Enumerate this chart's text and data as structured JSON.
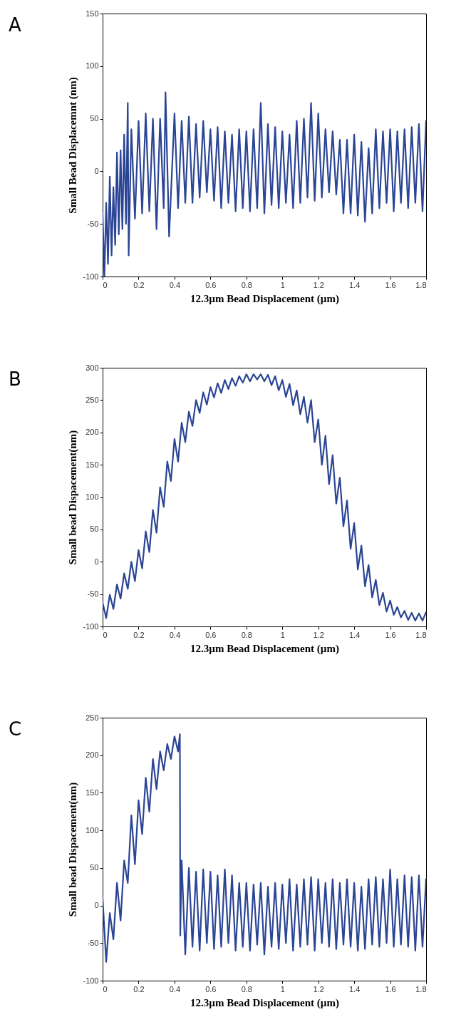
{
  "chart_data": [
    {
      "type": "line",
      "title": "A",
      "xlabel": "12.3µm Bead Displacement (µm)",
      "ylabel": "Small Bead Displacemnt (nm)",
      "xlim": [
        0,
        1.8
      ],
      "xticks": [
        0,
        0.2,
        0.4,
        0.6,
        0.8,
        1,
        1.2,
        1.4,
        1.6,
        1.8
      ],
      "ylim": [
        -100,
        150
      ],
      "yticks": [
        -100,
        -50,
        0,
        50,
        100,
        150
      ],
      "line_style": "solid",
      "marker": "none",
      "series": [
        {
          "color": "#2b4595",
          "x": [
            0,
            0.01,
            0.02,
            0.03,
            0.04,
            0.05,
            0.06,
            0.07,
            0.08,
            0.09,
            0.1,
            0.11,
            0.12,
            0.13,
            0.14,
            0.145,
            0.16,
            0.18,
            0.2,
            0.22,
            0.24,
            0.26,
            0.28,
            0.3,
            0.32,
            0.34,
            0.35,
            0.37,
            0.4,
            0.42,
            0.44,
            0.46,
            0.48,
            0.5,
            0.52,
            0.54,
            0.56,
            0.58,
            0.6,
            0.62,
            0.64,
            0.66,
            0.68,
            0.7,
            0.72,
            0.74,
            0.76,
            0.78,
            0.8,
            0.82,
            0.84,
            0.86,
            0.88,
            0.9,
            0.92,
            0.94,
            0.96,
            0.98,
            1,
            1.02,
            1.04,
            1.06,
            1.08,
            1.1,
            1.12,
            1.14,
            1.16,
            1.18,
            1.2,
            1.22,
            1.24,
            1.26,
            1.28,
            1.3,
            1.32,
            1.34,
            1.36,
            1.38,
            1.4,
            1.42,
            1.44,
            1.46,
            1.48,
            1.5,
            1.52,
            1.54,
            1.56,
            1.58,
            1.6,
            1.62,
            1.64,
            1.66,
            1.68,
            1.7,
            1.72,
            1.74,
            1.76,
            1.78,
            1.8
          ],
          "values": [
            -40,
            -100,
            -30,
            -88,
            -5,
            -80,
            -15,
            -70,
            18,
            -60,
            20,
            -55,
            35,
            -50,
            65,
            -80,
            40,
            -45,
            48,
            -40,
            55,
            -38,
            50,
            -55,
            50,
            -35,
            75,
            -62,
            55,
            -35,
            48,
            -30,
            52,
            -30,
            45,
            -25,
            48,
            -20,
            40,
            -28,
            42,
            -35,
            38,
            -30,
            35,
            -38,
            40,
            -35,
            38,
            -38,
            40,
            -35,
            65,
            -40,
            45,
            -32,
            42,
            -35,
            38,
            -30,
            35,
            -35,
            48,
            -30,
            50,
            -25,
            65,
            -28,
            55,
            -25,
            40,
            -20,
            38,
            -22,
            30,
            -40,
            30,
            -40,
            35,
            -42,
            28,
            -48,
            22,
            -40,
            40,
            -35,
            38,
            -30,
            40,
            -38,
            38,
            -30,
            40,
            -35,
            42,
            -30,
            45,
            -38,
            48
          ]
        }
      ]
    },
    {
      "type": "line",
      "title": "B",
      "xlabel": "12.3µm Bead Displacement (µm)",
      "ylabel": "Small bead Dispacement(nm)",
      "xlim": [
        0,
        1.8
      ],
      "xticks": [
        0,
        0.2,
        0.4,
        0.6,
        0.8,
        1,
        1.2,
        1.4,
        1.6,
        1.8
      ],
      "ylim": [
        -100,
        300
      ],
      "yticks": [
        -100,
        -50,
        0,
        50,
        100,
        150,
        200,
        250,
        300
      ],
      "line_style": "solid",
      "marker": "none",
      "series": [
        {
          "color": "#2b4595",
          "x": [
            0,
            0.02,
            0.04,
            0.06,
            0.08,
            0.1,
            0.12,
            0.14,
            0.16,
            0.18,
            0.2,
            0.22,
            0.24,
            0.26,
            0.28,
            0.3,
            0.32,
            0.34,
            0.36,
            0.38,
            0.4,
            0.42,
            0.44,
            0.46,
            0.48,
            0.5,
            0.52,
            0.54,
            0.56,
            0.58,
            0.6,
            0.62,
            0.64,
            0.66,
            0.68,
            0.7,
            0.72,
            0.74,
            0.76,
            0.78,
            0.8,
            0.82,
            0.84,
            0.86,
            0.88,
            0.9,
            0.92,
            0.94,
            0.96,
            0.98,
            1,
            1.02,
            1.04,
            1.06,
            1.08,
            1.1,
            1.12,
            1.14,
            1.16,
            1.18,
            1.2,
            1.22,
            1.24,
            1.26,
            1.28,
            1.3,
            1.32,
            1.34,
            1.36,
            1.38,
            1.4,
            1.42,
            1.44,
            1.46,
            1.48,
            1.5,
            1.52,
            1.54,
            1.56,
            1.58,
            1.6,
            1.62,
            1.64,
            1.66,
            1.68,
            1.7,
            1.72,
            1.74,
            1.76,
            1.78,
            1.8
          ],
          "values": [
            -63,
            -87,
            -51,
            -73,
            -35,
            -57,
            -18,
            -42,
            0,
            -30,
            18,
            -10,
            47,
            15,
            80,
            45,
            115,
            85,
            155,
            125,
            190,
            155,
            215,
            185,
            232,
            210,
            250,
            230,
            262,
            243,
            270,
            254,
            276,
            261,
            281,
            267,
            284,
            272,
            287,
            277,
            290,
            279,
            290,
            282,
            290,
            279,
            289,
            273,
            287,
            265,
            281,
            255,
            275,
            242,
            265,
            228,
            255,
            215,
            250,
            185,
            220,
            150,
            195,
            120,
            165,
            90,
            130,
            55,
            95,
            20,
            60,
            -12,
            25,
            -38,
            -5,
            -55,
            -28,
            -67,
            -48,
            -77,
            -60,
            -82,
            -70,
            -86,
            -76,
            -90,
            -79,
            -91,
            -80,
            -91,
            -78
          ]
        }
      ]
    },
    {
      "type": "line",
      "title": "C",
      "xlabel": "12.3µm Bead Displacement (µm)",
      "ylabel": "Small bead Dispacement(nm)",
      "xlim": [
        0,
        1.8
      ],
      "xticks": [
        0,
        0.2,
        0.4,
        0.6,
        0.8,
        1,
        1.2,
        1.4,
        1.6,
        1.8
      ],
      "ylim": [
        -100,
        250
      ],
      "yticks": [
        -100,
        -50,
        0,
        50,
        100,
        150,
        200,
        250
      ],
      "line_style": "solid",
      "marker": "none",
      "series": [
        {
          "color": "#2b4595",
          "x": [
            0,
            0.02,
            0.04,
            0.06,
            0.08,
            0.1,
            0.12,
            0.14,
            0.16,
            0.18,
            0.2,
            0.22,
            0.24,
            0.26,
            0.28,
            0.3,
            0.32,
            0.34,
            0.36,
            0.38,
            0.4,
            0.42,
            0.43,
            0.432,
            0.44,
            0.46,
            0.48,
            0.5,
            0.52,
            0.54,
            0.56,
            0.58,
            0.6,
            0.62,
            0.64,
            0.66,
            0.68,
            0.7,
            0.72,
            0.74,
            0.76,
            0.78,
            0.8,
            0.82,
            0.84,
            0.86,
            0.88,
            0.9,
            0.92,
            0.94,
            0.96,
            0.98,
            1,
            1.02,
            1.04,
            1.06,
            1.08,
            1.1,
            1.12,
            1.14,
            1.16,
            1.18,
            1.2,
            1.22,
            1.24,
            1.26,
            1.28,
            1.3,
            1.32,
            1.34,
            1.36,
            1.38,
            1.4,
            1.42,
            1.44,
            1.46,
            1.48,
            1.5,
            1.52,
            1.54,
            1.56,
            1.58,
            1.6,
            1.62,
            1.64,
            1.66,
            1.68,
            1.7,
            1.72,
            1.74,
            1.76,
            1.78,
            1.8
          ],
          "values": [
            10,
            -75,
            -10,
            -45,
            30,
            -20,
            60,
            30,
            120,
            55,
            140,
            95,
            170,
            125,
            195,
            155,
            205,
            180,
            215,
            195,
            225,
            205,
            228,
            -40,
            60,
            -65,
            50,
            -55,
            45,
            -60,
            48,
            -50,
            45,
            -58,
            40,
            -55,
            48,
            -50,
            40,
            -60,
            30,
            -55,
            30,
            -60,
            28,
            -52,
            30,
            -65,
            25,
            -55,
            30,
            -58,
            28,
            -50,
            35,
            -60,
            28,
            -55,
            35,
            -52,
            38,
            -60,
            35,
            -50,
            30,
            -55,
            35,
            -58,
            30,
            -52,
            35,
            -55,
            30,
            -60,
            25,
            -58,
            35,
            -52,
            38,
            -55,
            35,
            -50,
            48,
            -55,
            35,
            -52,
            40,
            -55,
            38,
            -60,
            40,
            -55,
            35
          ]
        }
      ]
    }
  ]
}
